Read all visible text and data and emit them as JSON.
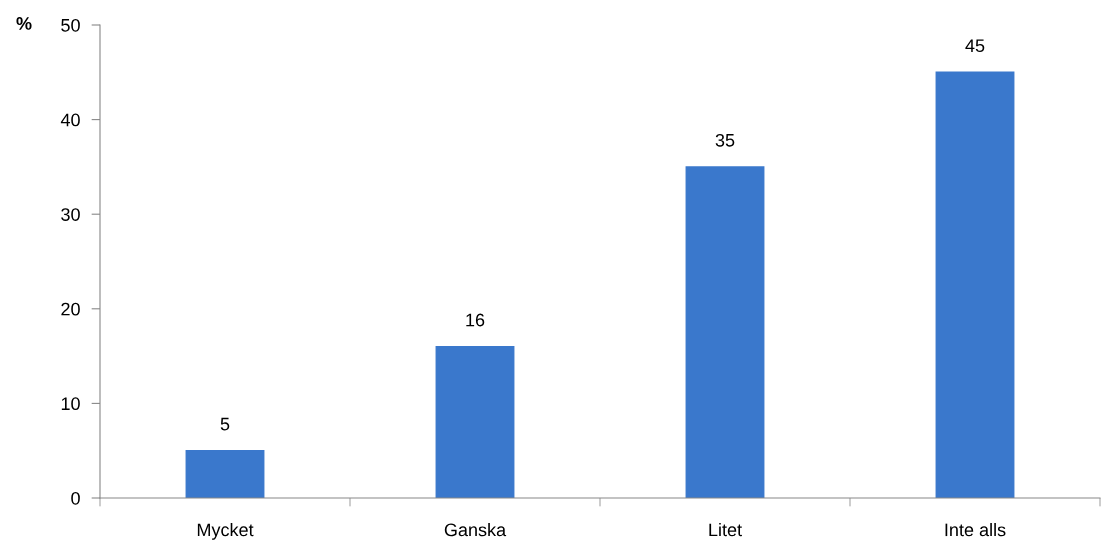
{
  "chart_data": {
    "type": "bar",
    "ylabel": "%",
    "categories": [
      "Mycket",
      "Ganska",
      "Litet",
      "Inte alls"
    ],
    "values": [
      5,
      16,
      35,
      45
    ],
    "color": "#3a78cc",
    "ylim": [
      0,
      50
    ],
    "yticks": [
      0,
      10,
      20,
      30,
      40,
      50
    ],
    "grid": false,
    "data_labels": true
  }
}
